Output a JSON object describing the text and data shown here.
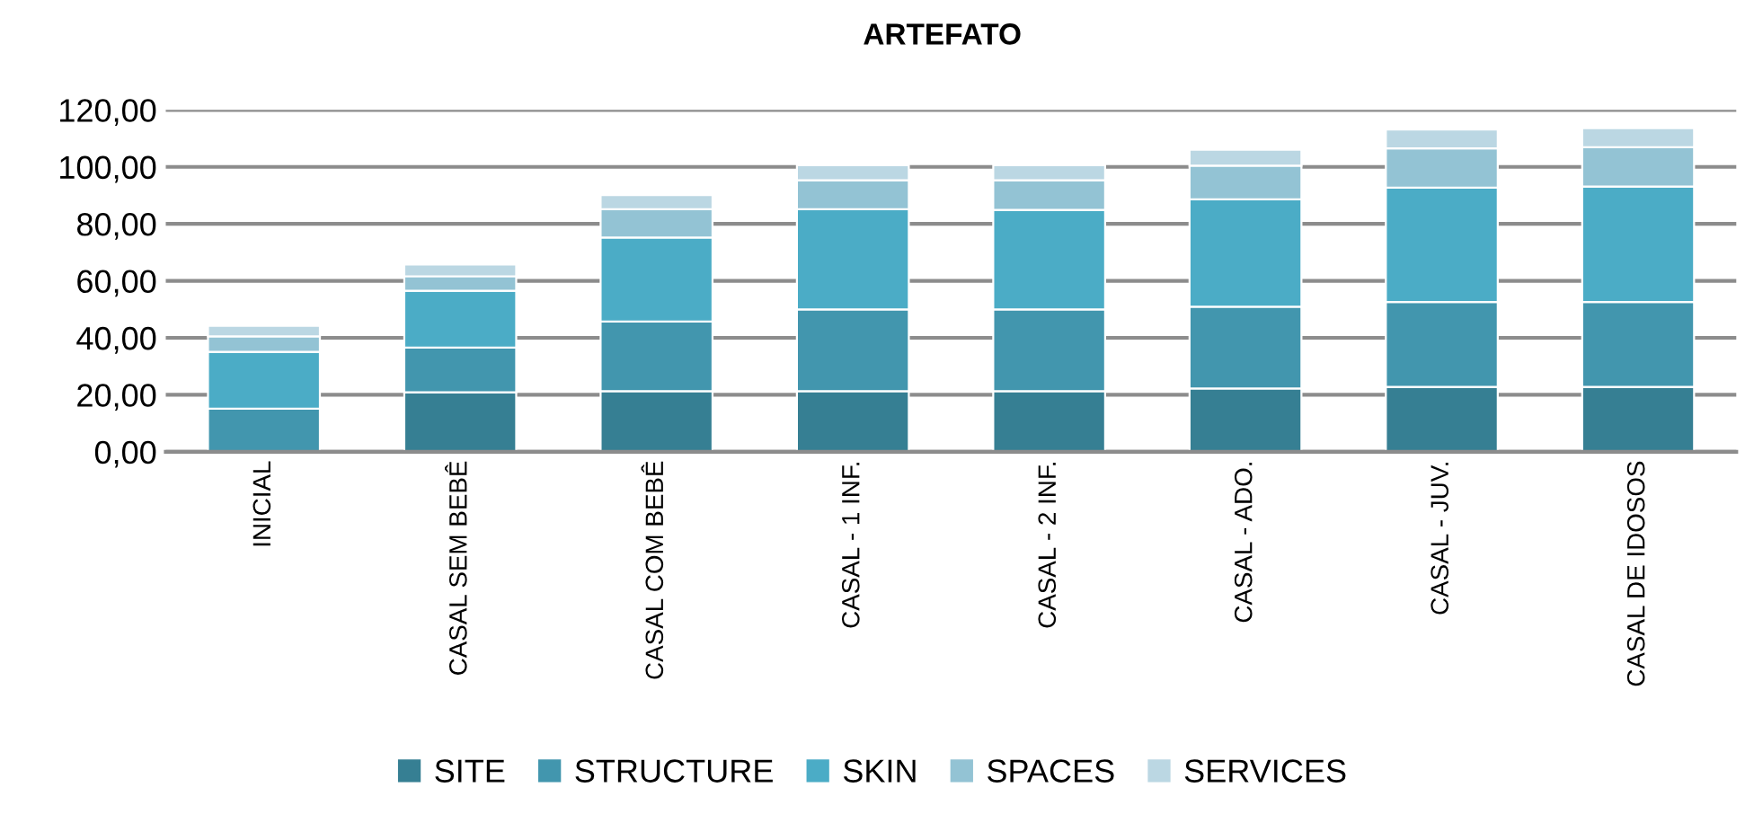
{
  "chart_data": {
    "type": "bar",
    "title": "ARTEFATO",
    "stacked": true,
    "grid": "y",
    "legend": "bottom",
    "categories": [
      "INICIAL",
      "CASAL SEM BEBÊ",
      "CASAL COM BEBÊ",
      "CASAL - 1 INF.",
      "CASAL - 2 INF.",
      "CASAL - ADO.",
      "CASAL - JUV.",
      "CASAL DE IDOSOS"
    ],
    "series": [
      {
        "name": "SITE",
        "color": "#367f93",
        "values": [
          0,
          20.9,
          21.3,
          21.3,
          21.3,
          22.2,
          22.8,
          22.8
        ]
      },
      {
        "name": "STRUCTURE",
        "color": "#4296ae",
        "values": [
          15.1,
          15.7,
          24.4,
          28.7,
          28.7,
          28.7,
          29.8,
          29.8
        ]
      },
      {
        "name": "SKIN",
        "color": "#4bacc6",
        "values": [
          20.0,
          19.9,
          29.5,
          35.1,
          34.9,
          37.7,
          40.1,
          40.5
        ]
      },
      {
        "name": "SPACES",
        "color": "#93c3d4",
        "values": [
          5.4,
          5.1,
          9.9,
          10.2,
          10.4,
          11.8,
          13.8,
          13.8
        ]
      },
      {
        "name": "SERVICES",
        "color": "#bbd7e3",
        "values": [
          3.7,
          4.1,
          5.0,
          5.3,
          5.3,
          5.6,
          6.6,
          6.7
        ]
      }
    ],
    "ylim": [
      0,
      120
    ],
    "yticks": [
      {
        "value": 0,
        "label": "0,00"
      },
      {
        "value": 20,
        "label": "20,00"
      },
      {
        "value": 40,
        "label": "40,00"
      },
      {
        "value": 60,
        "label": "60,00"
      },
      {
        "value": 80,
        "label": "80,00"
      },
      {
        "value": 100,
        "label": "100,00"
      },
      {
        "value": 120,
        "label": "120,00"
      }
    ]
  }
}
